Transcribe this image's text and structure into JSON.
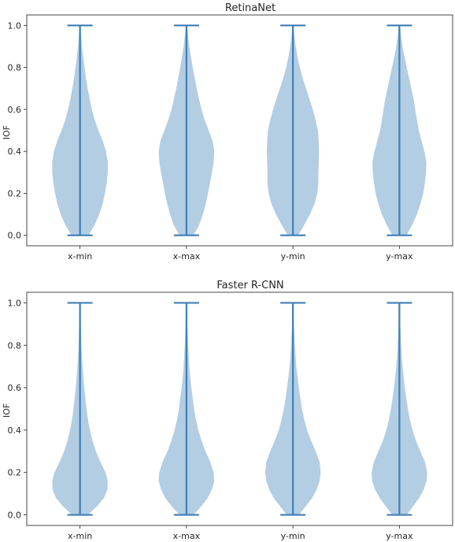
{
  "chart_data": [
    {
      "type": "violin",
      "title": "RetinaNet",
      "xlabel": "",
      "ylabel": "IOF",
      "ylim": [
        -0.05,
        1.05
      ],
      "yticks": [
        "0.0",
        "0.2",
        "0.4",
        "0.6",
        "0.8",
        "1.0"
      ],
      "categories": [
        "x-min",
        "x-max",
        "y-min",
        "y-max"
      ],
      "grid": false,
      "violins": [
        {
          "category": "x-min",
          "min": 0.0,
          "max": 1.0,
          "density": [
            [
              0.0,
              0.3
            ],
            [
              0.05,
              0.52
            ],
            [
              0.1,
              0.68
            ],
            [
              0.15,
              0.8
            ],
            [
              0.2,
              0.88
            ],
            [
              0.25,
              0.94
            ],
            [
              0.3,
              0.98
            ],
            [
              0.35,
              0.98
            ],
            [
              0.4,
              0.92
            ],
            [
              0.45,
              0.8
            ],
            [
              0.5,
              0.65
            ],
            [
              0.55,
              0.52
            ],
            [
              0.6,
              0.42
            ],
            [
              0.65,
              0.34
            ],
            [
              0.7,
              0.27
            ],
            [
              0.75,
              0.21
            ],
            [
              0.8,
              0.16
            ],
            [
              0.85,
              0.11
            ],
            [
              0.9,
              0.07
            ],
            [
              0.95,
              0.04
            ],
            [
              1.0,
              0.02
            ]
          ]
        },
        {
          "category": "x-max",
          "min": 0.0,
          "max": 1.0,
          "density": [
            [
              0.0,
              0.25
            ],
            [
              0.05,
              0.45
            ],
            [
              0.1,
              0.58
            ],
            [
              0.15,
              0.68
            ],
            [
              0.2,
              0.76
            ],
            [
              0.25,
              0.83
            ],
            [
              0.3,
              0.9
            ],
            [
              0.35,
              0.96
            ],
            [
              0.4,
              0.98
            ],
            [
              0.45,
              0.92
            ],
            [
              0.5,
              0.78
            ],
            [
              0.55,
              0.64
            ],
            [
              0.6,
              0.53
            ],
            [
              0.65,
              0.44
            ],
            [
              0.7,
              0.36
            ],
            [
              0.75,
              0.29
            ],
            [
              0.8,
              0.22
            ],
            [
              0.85,
              0.16
            ],
            [
              0.9,
              0.1
            ],
            [
              0.95,
              0.06
            ],
            [
              1.0,
              0.02
            ]
          ]
        },
        {
          "category": "y-min",
          "min": 0.0,
          "max": 1.0,
          "density": [
            [
              0.0,
              0.18
            ],
            [
              0.05,
              0.4
            ],
            [
              0.1,
              0.6
            ],
            [
              0.15,
              0.76
            ],
            [
              0.2,
              0.86
            ],
            [
              0.25,
              0.9
            ],
            [
              0.3,
              0.9
            ],
            [
              0.35,
              0.91
            ],
            [
              0.4,
              0.92
            ],
            [
              0.45,
              0.91
            ],
            [
              0.5,
              0.88
            ],
            [
              0.55,
              0.8
            ],
            [
              0.6,
              0.7
            ],
            [
              0.65,
              0.58
            ],
            [
              0.7,
              0.46
            ],
            [
              0.75,
              0.34
            ],
            [
              0.8,
              0.24
            ],
            [
              0.85,
              0.16
            ],
            [
              0.9,
              0.1
            ],
            [
              0.95,
              0.05
            ],
            [
              1.0,
              0.02
            ]
          ]
        },
        {
          "category": "y-max",
          "min": 0.0,
          "max": 1.0,
          "density": [
            [
              0.0,
              0.25
            ],
            [
              0.05,
              0.45
            ],
            [
              0.1,
              0.62
            ],
            [
              0.15,
              0.74
            ],
            [
              0.2,
              0.84
            ],
            [
              0.25,
              0.9
            ],
            [
              0.3,
              0.94
            ],
            [
              0.35,
              0.95
            ],
            [
              0.4,
              0.88
            ],
            [
              0.45,
              0.78
            ],
            [
              0.5,
              0.68
            ],
            [
              0.55,
              0.62
            ],
            [
              0.6,
              0.56
            ],
            [
              0.65,
              0.5
            ],
            [
              0.7,
              0.42
            ],
            [
              0.75,
              0.34
            ],
            [
              0.8,
              0.26
            ],
            [
              0.85,
              0.18
            ],
            [
              0.9,
              0.11
            ],
            [
              0.95,
              0.06
            ],
            [
              1.0,
              0.02
            ]
          ]
        }
      ]
    },
    {
      "type": "violin",
      "title": "Faster R-CNN",
      "xlabel": "",
      "ylabel": "IOF",
      "ylim": [
        -0.05,
        1.05
      ],
      "yticks": [
        "0.0",
        "0.2",
        "0.4",
        "0.6",
        "0.8",
        "1.0"
      ],
      "categories": [
        "x-min",
        "x-max",
        "y-min",
        "y-max"
      ],
      "grid": false,
      "violins": [
        {
          "category": "x-min",
          "min": 0.0,
          "max": 1.0,
          "density": [
            [
              0.0,
              0.28
            ],
            [
              0.04,
              0.6
            ],
            [
              0.08,
              0.85
            ],
            [
              0.12,
              0.97
            ],
            [
              0.16,
              0.98
            ],
            [
              0.2,
              0.9
            ],
            [
              0.25,
              0.72
            ],
            [
              0.3,
              0.56
            ],
            [
              0.35,
              0.44
            ],
            [
              0.4,
              0.35
            ],
            [
              0.45,
              0.28
            ],
            [
              0.5,
              0.23
            ],
            [
              0.55,
              0.19
            ],
            [
              0.6,
              0.15
            ],
            [
              0.65,
              0.12
            ],
            [
              0.7,
              0.09
            ],
            [
              0.75,
              0.07
            ],
            [
              0.8,
              0.05
            ],
            [
              0.9,
              0.03
            ],
            [
              1.0,
              0.01
            ]
          ]
        },
        {
          "category": "x-max",
          "min": 0.0,
          "max": 1.0,
          "density": [
            [
              0.0,
              0.25
            ],
            [
              0.04,
              0.52
            ],
            [
              0.08,
              0.75
            ],
            [
              0.12,
              0.9
            ],
            [
              0.16,
              0.98
            ],
            [
              0.2,
              0.96
            ],
            [
              0.25,
              0.84
            ],
            [
              0.3,
              0.67
            ],
            [
              0.35,
              0.53
            ],
            [
              0.4,
              0.42
            ],
            [
              0.45,
              0.33
            ],
            [
              0.5,
              0.27
            ],
            [
              0.55,
              0.22
            ],
            [
              0.6,
              0.17
            ],
            [
              0.65,
              0.13
            ],
            [
              0.7,
              0.1
            ],
            [
              0.75,
              0.08
            ],
            [
              0.8,
              0.06
            ],
            [
              0.9,
              0.03
            ],
            [
              1.0,
              0.01
            ]
          ]
        },
        {
          "category": "y-min",
          "min": 0.0,
          "max": 1.0,
          "density": [
            [
              0.0,
              0.22
            ],
            [
              0.04,
              0.45
            ],
            [
              0.08,
              0.68
            ],
            [
              0.12,
              0.84
            ],
            [
              0.16,
              0.94
            ],
            [
              0.2,
              0.98
            ],
            [
              0.25,
              0.94
            ],
            [
              0.3,
              0.8
            ],
            [
              0.35,
              0.64
            ],
            [
              0.4,
              0.5
            ],
            [
              0.45,
              0.4
            ],
            [
              0.5,
              0.32
            ],
            [
              0.55,
              0.26
            ],
            [
              0.6,
              0.21
            ],
            [
              0.65,
              0.16
            ],
            [
              0.7,
              0.12
            ],
            [
              0.75,
              0.09
            ],
            [
              0.8,
              0.07
            ],
            [
              0.9,
              0.03
            ],
            [
              1.0,
              0.01
            ]
          ]
        },
        {
          "category": "y-max",
          "min": 0.0,
          "max": 1.0,
          "density": [
            [
              0.0,
              0.25
            ],
            [
              0.04,
              0.48
            ],
            [
              0.08,
              0.7
            ],
            [
              0.12,
              0.86
            ],
            [
              0.16,
              0.96
            ],
            [
              0.2,
              0.98
            ],
            [
              0.25,
              0.9
            ],
            [
              0.3,
              0.74
            ],
            [
              0.35,
              0.58
            ],
            [
              0.4,
              0.46
            ],
            [
              0.45,
              0.37
            ],
            [
              0.5,
              0.3
            ],
            [
              0.55,
              0.24
            ],
            [
              0.6,
              0.19
            ],
            [
              0.65,
              0.15
            ],
            [
              0.7,
              0.11
            ],
            [
              0.75,
              0.08
            ],
            [
              0.8,
              0.06
            ],
            [
              0.9,
              0.03
            ],
            [
              1.0,
              0.01
            ]
          ]
        }
      ]
    }
  ],
  "colors": {
    "violin_fill": "#b3cde3",
    "violin_line": "#3f7fb5",
    "frame": "#333333",
    "text": "#262626"
  }
}
